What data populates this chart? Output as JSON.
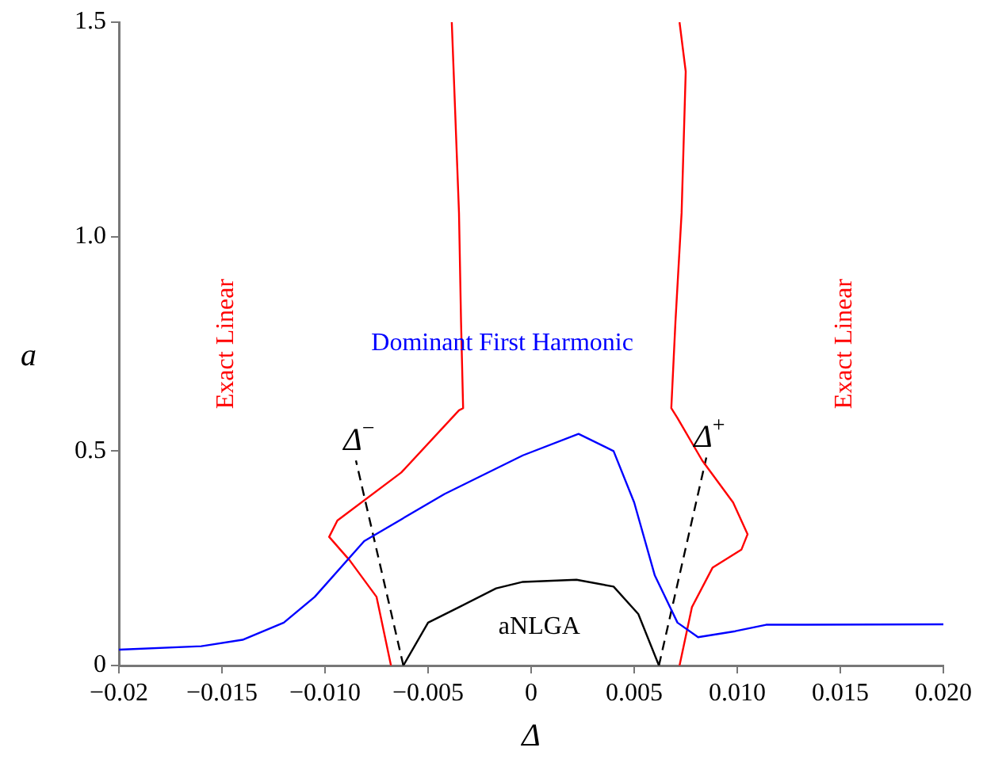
{
  "chart_data": {
    "type": "line",
    "xlabel": "Δ",
    "ylabel": "a",
    "xlim": [
      -0.02,
      0.02
    ],
    "ylim": [
      0,
      1.5
    ],
    "xticks": [
      {
        "value": -0.02,
        "label": "−0.02"
      },
      {
        "value": -0.015,
        "label": "−0.015"
      },
      {
        "value": -0.01,
        "label": "−0.010"
      },
      {
        "value": -0.005,
        "label": "−0.005"
      },
      0,
      {
        "value": 0.005,
        "label": "0.005"
      },
      {
        "value": 0.01,
        "label": "0.010"
      },
      {
        "value": 0.015,
        "label": "0.015"
      },
      {
        "value": 0.02,
        "label": "0.020"
      }
    ],
    "yticks": [
      0,
      0.5,
      {
        "value": 1,
        "label": "1.0"
      },
      1.5
    ],
    "grid": false,
    "legend": false,
    "marker": "none",
    "series": [
      {
        "color": "#0000ff",
        "x": [
          -0.02,
          -0.016,
          -0.014,
          -0.012,
          -0.0105,
          -0.0081,
          -0.0042,
          -0.0004,
          0.0023,
          0.004,
          0.005,
          0.006,
          0.0071,
          0.0081,
          0.0099,
          0.0114,
          0.02
        ],
        "values": [
          0.037,
          0.045,
          0.06,
          0.1,
          0.16,
          0.29,
          0.4,
          0.49,
          0.54,
          0.5,
          0.38,
          0.21,
          0.1,
          0.066,
          0.08,
          0.095,
          0.096
        ]
      },
      {
        "color": "#000000",
        "x": [
          -0.0062,
          -0.005,
          -0.0035,
          -0.0017,
          -0.0004,
          0.0022,
          0.004,
          0.0052,
          0.0062
        ],
        "values": [
          0,
          0.1,
          0.136,
          0.18,
          0.195,
          0.2,
          0.184,
          0.12,
          0
        ]
      },
      {
        "color": "#ff0000",
        "x": [
          -0.00385,
          -0.0035,
          -0.0034,
          -0.0033,
          -0.0035,
          -0.0063,
          -0.0094,
          -0.0098,
          -0.0088,
          -0.0075,
          -0.0068
        ],
        "values": [
          1.5,
          1.055,
          0.8,
          0.6,
          0.595,
          0.45,
          0.338,
          0.3,
          0.245,
          0.16,
          0
        ]
      },
      {
        "color": "#ff0000",
        "x": [
          0.0072,
          0.0075,
          0.0073,
          0.007,
          0.0068,
          0.0071,
          0.0083,
          0.0098,
          0.0105,
          0.0102,
          0.0088,
          0.0078,
          0.0072
        ],
        "values": [
          1.5,
          1.385,
          1.055,
          0.8,
          0.6,
          0.577,
          0.478,
          0.38,
          0.306,
          0.27,
          0.228,
          0.136,
          0
        ]
      },
      {
        "name": "Δ$^{−}$",
        "color": "#000000",
        "line_style": "dashed",
        "x": [
          -0.0062,
          -0.0085
        ],
        "values": [
          0,
          0.478
        ]
      },
      {
        "name": "Δ$^{+}$",
        "color": "#000000",
        "line_style": "dashed",
        "x": [
          0.0062,
          0.0085
        ],
        "values": [
          0,
          0.485
        ]
      }
    ],
    "annotations": [
      "Exact Linear",
      "Exact Linear",
      "Dominant First Harmonic",
      "aNLGA"
    ]
  }
}
